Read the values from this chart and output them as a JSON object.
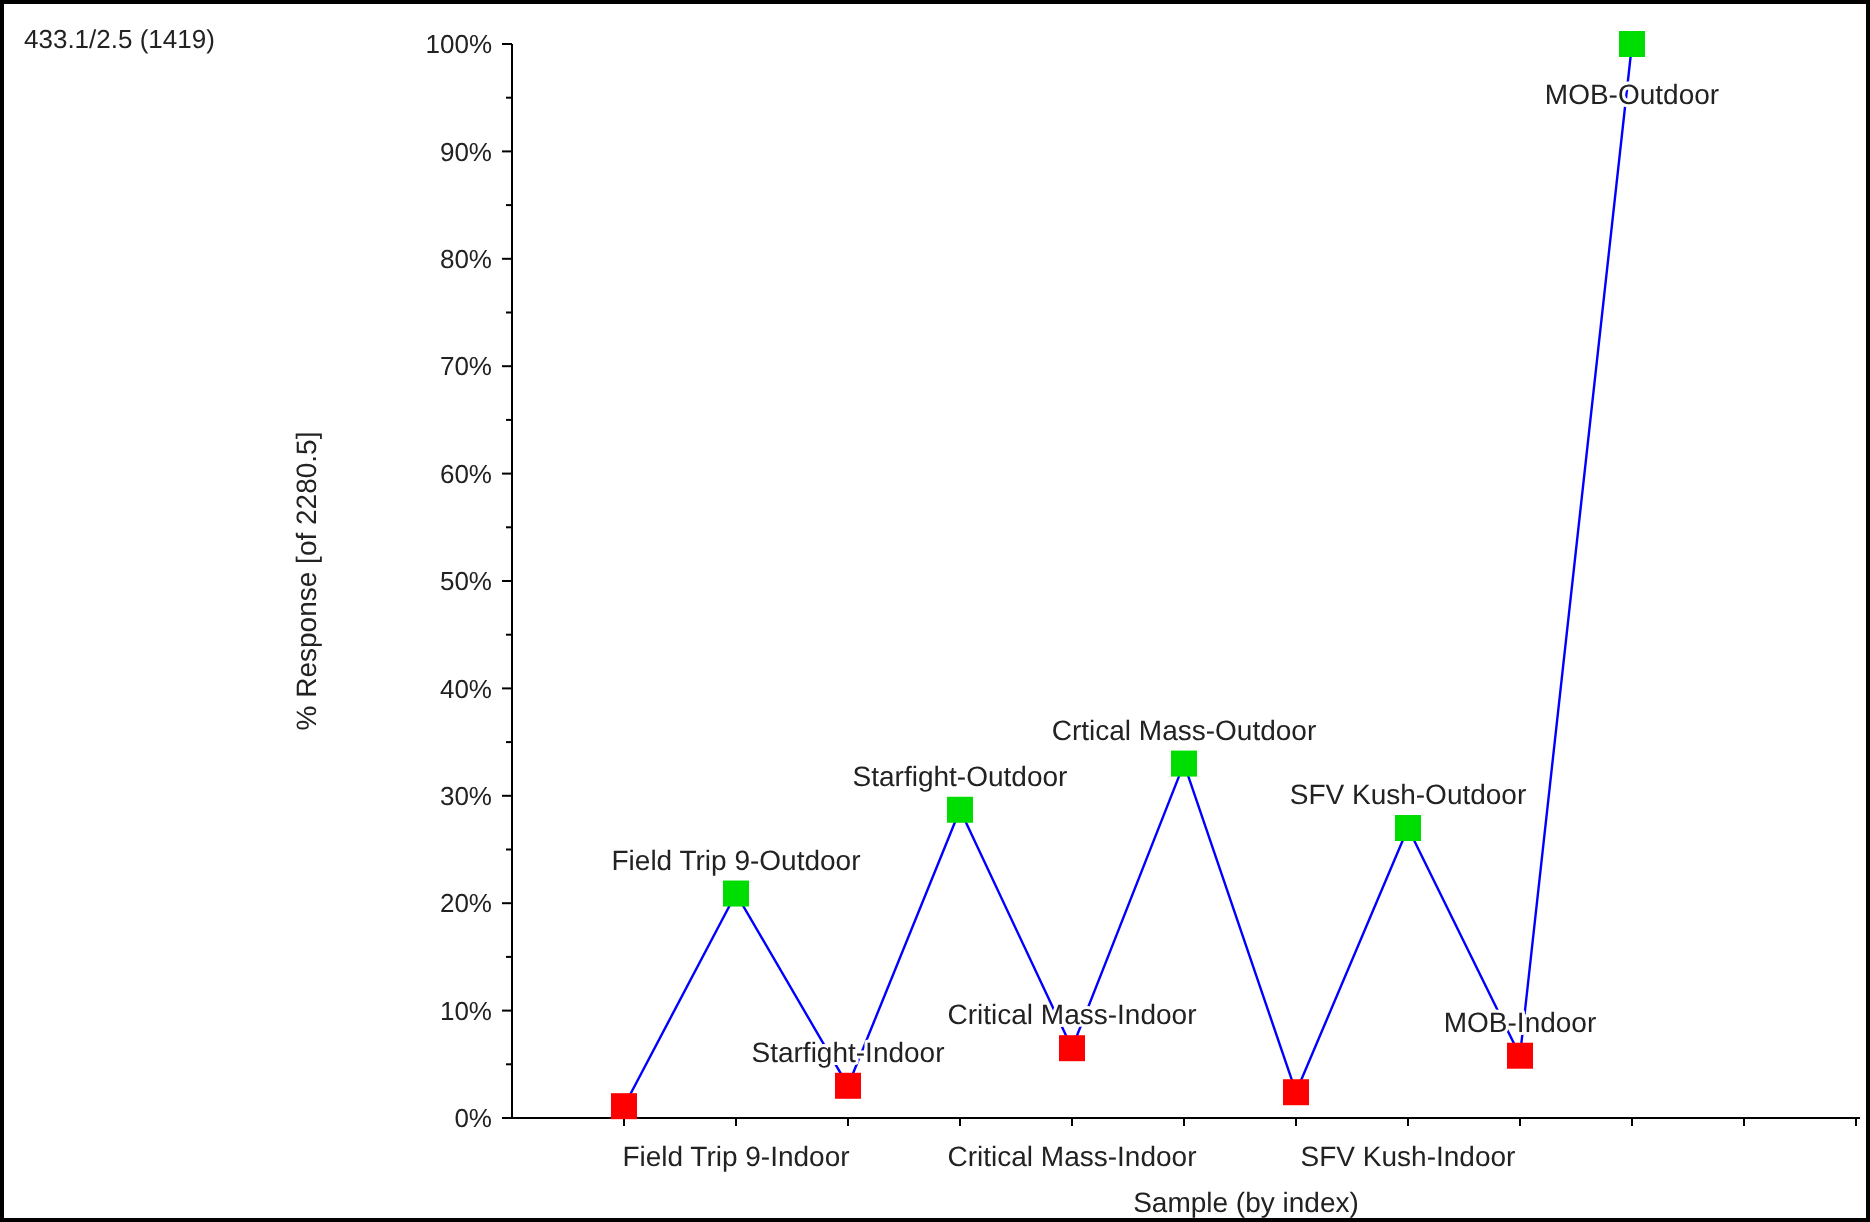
{
  "chart_data": {
    "type": "line",
    "xlabel": "Sample (by index)",
    "ylabel": "% Response [of 2280.5]",
    "categories": [
      null,
      "Field Trip 9-Indoor",
      null,
      null,
      "Critical Mass-Indoor",
      null,
      null,
      "SFV Kush-Indoor",
      null,
      null
    ],
    "series": [
      {
        "color": "#0000ff",
        "colors": [
          "#ff0000",
          "#00dd00",
          "#ff0000",
          "#00dd00",
          "#ff0000",
          "#00dd00",
          "#ff0000",
          "#00dd00",
          "#ff0000",
          "#00dd00"
        ],
        "values": [
          1.1,
          20.9,
          3,
          28.7,
          6.5,
          33,
          2.4,
          27,
          5.8,
          100
        ]
      }
    ],
    "marker": "square",
    "line_style": "solid",
    "ylim": [
      0,
      100
    ],
    "yticks": [
      {
        "value": 0,
        "label": "0%"
      },
      {
        "value": 10,
        "label": "10%"
      },
      {
        "value": 20,
        "label": "20%"
      },
      {
        "value": 30,
        "label": "30%"
      },
      {
        "value": 40,
        "label": "40%"
      },
      {
        "value": 50,
        "label": "50%"
      },
      {
        "value": 60,
        "label": "60%"
      },
      {
        "value": 70,
        "label": "70%"
      },
      {
        "value": 80,
        "label": "80%"
      },
      {
        "value": 90,
        "label": "90%"
      },
      {
        "value": 100,
        "label": "100%"
      }
    ],
    "annotations": [
      "433.1/2.5 (1419)",
      {
        "text": "Field Trip 9-Outdoor",
        "y": 20.9
      },
      {
        "text": "Starfight-Indoor",
        "y": 3
      },
      {
        "text": "Starfight-Outdoor",
        "y": 28.7
      },
      {
        "text": "Critical Mass-Indoor",
        "y": 6.5
      },
      {
        "text": "Crtical Mass-Outdoor",
        "y": 33
      },
      {
        "text": "SFV Kush-Outdoor",
        "y": 27
      },
      {
        "text": "MOB-Indoor",
        "y": 5.8
      },
      {
        "text": "MOB-Outdoor",
        "y": 100
      }
    ]
  }
}
